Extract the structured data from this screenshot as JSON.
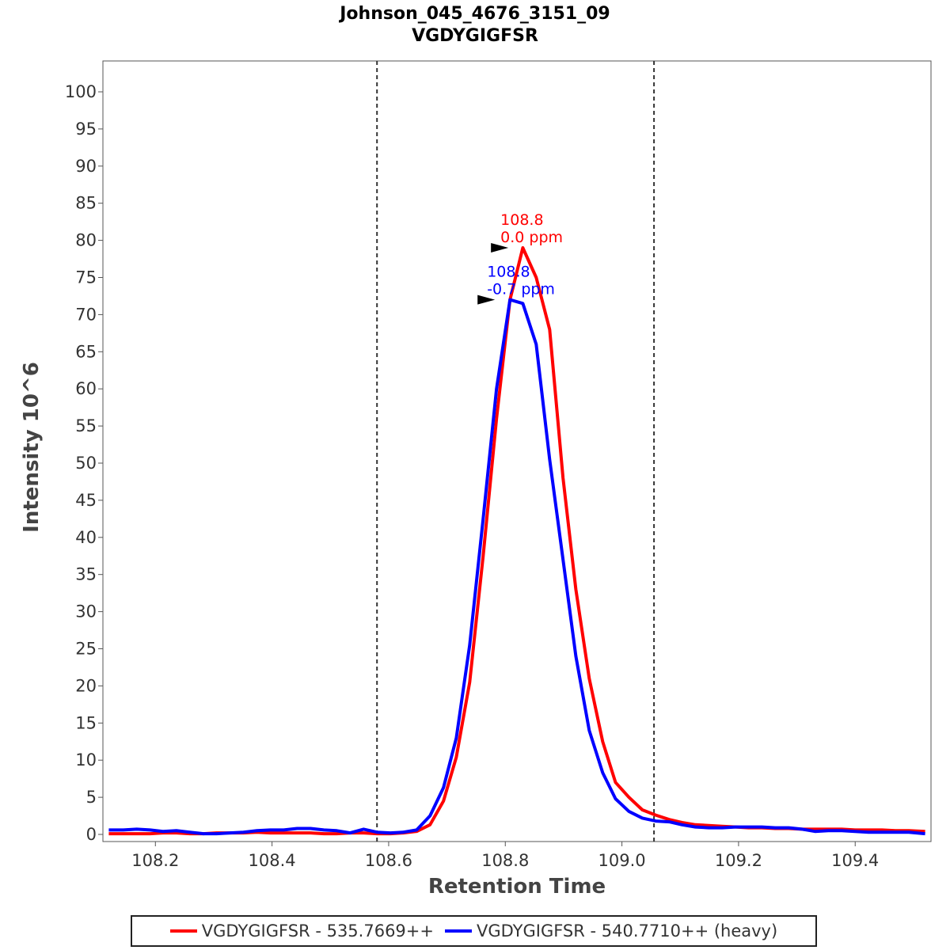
{
  "chart_data": {
    "type": "line",
    "title": "Johnson_045_4676_3151_09",
    "subtitle": "VGDYGIGFSR",
    "xlabel": "Retention Time",
    "ylabel": "Intensity 10^6",
    "xlim": [
      108.11,
      109.53
    ],
    "ylim": [
      0,
      104
    ],
    "xticks": [
      "108.2",
      "108.4",
      "108.6",
      "108.8",
      "109.0",
      "109.2",
      "109.4"
    ],
    "yticks": [
      "0",
      "5",
      "10",
      "15",
      "20",
      "25",
      "30",
      "35",
      "40",
      "45",
      "50",
      "55",
      "60",
      "65",
      "70",
      "75",
      "80",
      "85",
      "90",
      "95",
      "100"
    ],
    "grid": false,
    "legend_position": "bottom",
    "boundaries": [
      108.58,
      109.055
    ],
    "x": [
      108.12,
      108.145,
      108.168,
      108.191,
      108.213,
      108.236,
      108.259,
      108.282,
      108.305,
      108.328,
      108.351,
      108.374,
      108.397,
      108.42,
      108.443,
      108.466,
      108.489,
      108.511,
      108.534,
      108.557,
      108.58,
      108.603,
      108.625,
      108.648,
      108.671,
      108.694,
      108.716,
      108.739,
      108.762,
      108.785,
      108.808,
      108.83,
      108.853,
      108.876,
      108.899,
      108.921,
      108.944,
      108.967,
      108.989,
      109.012,
      109.035,
      109.058,
      109.081,
      109.103,
      109.126,
      109.149,
      109.172,
      109.195,
      109.217,
      109.24,
      109.263,
      109.286,
      109.309,
      109.331,
      109.354,
      109.377,
      109.4,
      109.423,
      109.446,
      109.469,
      109.492,
      109.52
    ],
    "series": [
      {
        "name": "VGDYGIGFSR - 535.7669++",
        "color": "#ff0000",
        "values": [
          0.1,
          0.1,
          0.1,
          0.1,
          0.2,
          0.2,
          0.1,
          0.1,
          0.2,
          0.2,
          0.2,
          0.3,
          0.2,
          0.2,
          0.2,
          0.2,
          0.1,
          0.1,
          0.2,
          0.2,
          0.1,
          0.1,
          0.2,
          0.4,
          1.3,
          4.5,
          10.4,
          20.5,
          37.5,
          56,
          72,
          79,
          75,
          68,
          48,
          33,
          21,
          12.5,
          7,
          5,
          3.3,
          2.6,
          2,
          1.6,
          1.3,
          1.2,
          1.1,
          1,
          0.9,
          0.9,
          0.8,
          0.8,
          0.7,
          0.7,
          0.7,
          0.7,
          0.6,
          0.6,
          0.6,
          0.5,
          0.5,
          0.4
        ]
      },
      {
        "name": "VGDYGIGFSR - 540.7710++ (heavy)",
        "color": "#0000ff",
        "values": [
          0.6,
          0.6,
          0.7,
          0.6,
          0.4,
          0.5,
          0.3,
          0.1,
          0.1,
          0.2,
          0.3,
          0.5,
          0.6,
          0.6,
          0.8,
          0.8,
          0.6,
          0.5,
          0.2,
          0.7,
          0.3,
          0.2,
          0.3,
          0.6,
          2.5,
          6.3,
          13,
          25.5,
          42.5,
          60,
          72,
          71.5,
          66,
          50.5,
          37,
          24,
          14,
          8.3,
          4.8,
          3.1,
          2.2,
          1.8,
          1.7,
          1.3,
          1,
          0.9,
          0.9,
          1,
          1,
          1,
          0.9,
          0.9,
          0.7,
          0.4,
          0.5,
          0.5,
          0.4,
          0.3,
          0.3,
          0.3,
          0.3,
          0.1
        ]
      }
    ],
    "annotations": [
      {
        "series": 0,
        "x": 108.808,
        "y": 79,
        "lines": [
          "108.8",
          "0.0 ppm"
        ],
        "color": "#ff0000"
      },
      {
        "series": 1,
        "x": 108.785,
        "y": 72,
        "lines": [
          "108.8",
          "-0.7 ppm"
        ],
        "color": "#0000ff"
      }
    ]
  }
}
